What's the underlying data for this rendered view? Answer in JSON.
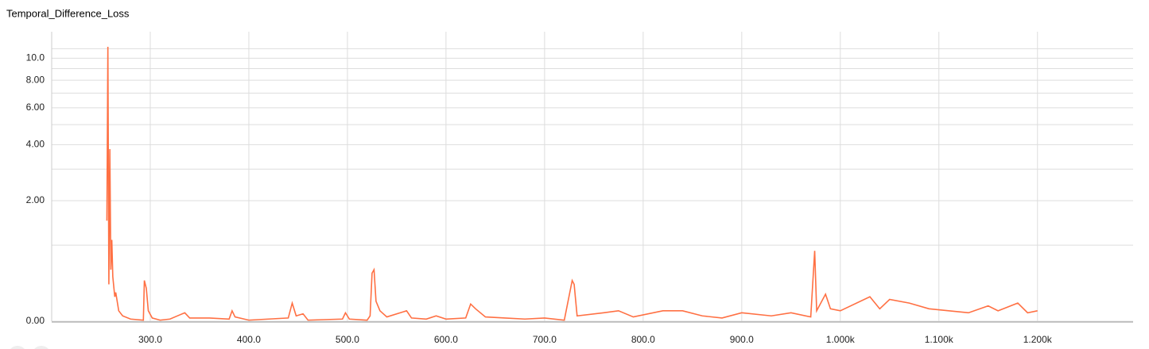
{
  "chart_data": {
    "type": "line",
    "title": "Temporal_Difference_Loss",
    "x": [
      256,
      257,
      258,
      259,
      260,
      261,
      262,
      264,
      265,
      268,
      272,
      280,
      293,
      294,
      296,
      298,
      302,
      310,
      320,
      330,
      335,
      340,
      360,
      380,
      383,
      386,
      400,
      420,
      440,
      444,
      448,
      455,
      460,
      495,
      498,
      502,
      520,
      523,
      525,
      527,
      529,
      533,
      540,
      560,
      565,
      580,
      590,
      600,
      620,
      625,
      630,
      640,
      660,
      680,
      700,
      720,
      728,
      730,
      733,
      760,
      775,
      790,
      820,
      840,
      860,
      880,
      900,
      930,
      950,
      970,
      974,
      976,
      985,
      990,
      1000,
      1030,
      1040,
      1050,
      1070,
      1090,
      1110,
      1130,
      1150,
      1160,
      1180,
      1190,
      1200
    ],
    "series": [
      {
        "name": "Temporal_Difference_Loss",
        "color": "#ff7043",
        "values": [
          1.5,
          11.2,
          0.4,
          3.8,
          0.6,
          1.1,
          0.5,
          0.25,
          0.3,
          0.1,
          0.05,
          0.02,
          0.01,
          0.45,
          0.35,
          0.1,
          0.03,
          0.01,
          0.02,
          0.06,
          0.08,
          0.03,
          0.03,
          0.02,
          0.1,
          0.04,
          0.01,
          0.02,
          0.03,
          0.18,
          0.05,
          0.07,
          0.01,
          0.02,
          0.08,
          0.02,
          0.01,
          0.05,
          0.55,
          0.6,
          0.2,
          0.1,
          0.04,
          0.1,
          0.03,
          0.02,
          0.05,
          0.02,
          0.03,
          0.17,
          0.12,
          0.04,
          0.03,
          0.02,
          0.03,
          0.01,
          0.45,
          0.4,
          0.05,
          0.08,
          0.1,
          0.04,
          0.1,
          0.1,
          0.05,
          0.03,
          0.08,
          0.05,
          0.08,
          0.04,
          0.9,
          0.1,
          0.28,
          0.12,
          0.1,
          0.25,
          0.12,
          0.22,
          0.18,
          0.12,
          0.1,
          0.08,
          0.15,
          0.1,
          0.18,
          0.08,
          0.1
        ]
      }
    ],
    "xlim": [
      200,
      1297
    ],
    "xticks": [
      {
        "value": 300,
        "label": "300.0"
      },
      {
        "value": 400,
        "label": "400.0"
      },
      {
        "value": 500,
        "label": "500.0"
      },
      {
        "value": 600,
        "label": "600.0"
      },
      {
        "value": 700,
        "label": "700.0"
      },
      {
        "value": 800,
        "label": "800.0"
      },
      {
        "value": 900,
        "label": "900.0"
      },
      {
        "value": 1000,
        "label": "1.000k"
      },
      {
        "value": 1100,
        "label": "1.100k"
      },
      {
        "value": 1200,
        "label": "1.200k"
      }
    ],
    "ylim": [
      0,
      13
    ],
    "yscale": "log1p",
    "yticks": [
      {
        "value": 0,
        "label": "0.00"
      },
      {
        "value": 2,
        "label": "2.00"
      },
      {
        "value": 4,
        "label": "4.00"
      },
      {
        "value": 6,
        "label": "6.00"
      },
      {
        "value": 8,
        "label": "8.00"
      },
      {
        "value": 10,
        "label": "10.0"
      }
    ],
    "yminor": [
      1,
      3,
      5,
      7,
      9,
      11
    ],
    "grid": true
  }
}
